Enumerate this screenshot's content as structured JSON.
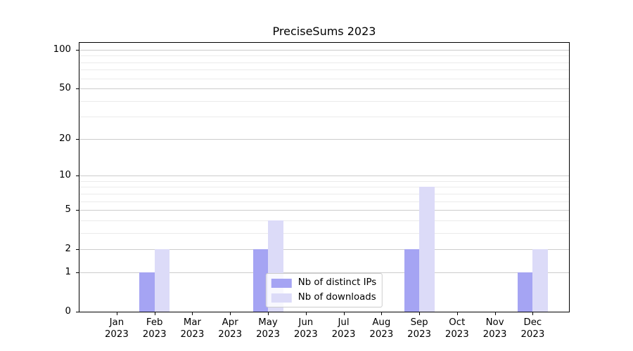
{
  "chart_data": {
    "type": "bar",
    "title": "PreciseSums 2023",
    "categories": [
      "Jan",
      "Feb",
      "Mar",
      "Apr",
      "May",
      "Jun",
      "Jul",
      "Aug",
      "Sep",
      "Oct",
      "Nov",
      "Dec"
    ],
    "category_year": "2023",
    "series": [
      {
        "name": "Nb of distinct IPs",
        "color": "#a5a4f3",
        "values": [
          0,
          1,
          0,
          0,
          2,
          0,
          0,
          0,
          2,
          0,
          0,
          1
        ]
      },
      {
        "name": "Nb of downloads",
        "color": "#dcdbf8",
        "values": [
          0,
          2,
          0,
          0,
          4,
          0,
          0,
          0,
          8,
          0,
          0,
          2
        ]
      }
    ],
    "xlabel": "",
    "ylabel": "",
    "yscale": "log1p",
    "ylim": [
      0,
      113
    ],
    "y_major_ticks": [
      0,
      1,
      2,
      5,
      10,
      20,
      50,
      100
    ],
    "y_minor_ticks": [
      3,
      4,
      6,
      7,
      8,
      9,
      30,
      40,
      60,
      70,
      80,
      90
    ],
    "grid": "both",
    "legend_position": "lower center"
  },
  "colors": {
    "background": "#ffffff",
    "axis": "#000000",
    "text": "#000000",
    "major_grid": "#cccccc",
    "minor_grid": "#ebebeb",
    "legend_border": "#cccccc"
  }
}
